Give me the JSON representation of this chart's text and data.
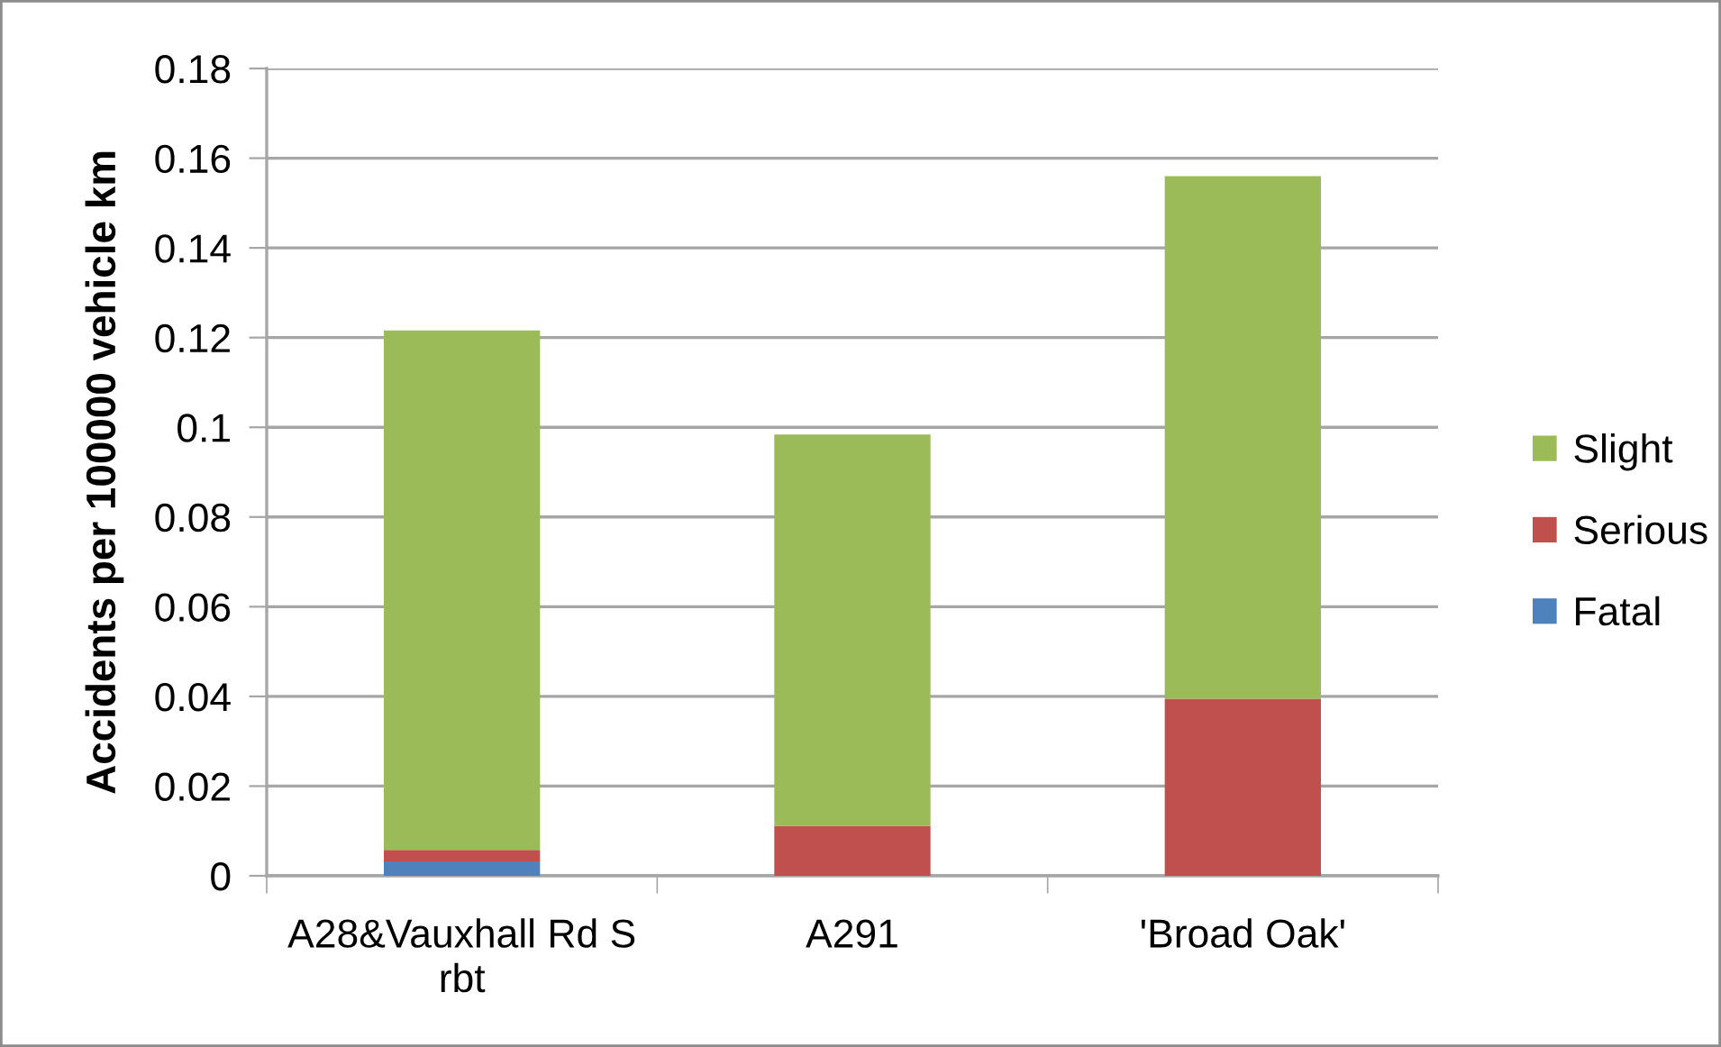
{
  "chart_data": {
    "type": "bar",
    "stacked": true,
    "ylabel": "Accidents per 100000 vehicle km",
    "categories": [
      "A28&Vauxhall Rd S\nrbt",
      "A291",
      "'Broad Oak'"
    ],
    "series": [
      {
        "name": "Fatal",
        "color": "#4f81bd",
        "values": [
          0.0032,
          null,
          null
        ]
      },
      {
        "name": "Serious",
        "color": "#c0504d",
        "values": [
          0.0026,
          0.0111,
          0.0395
        ]
      },
      {
        "name": "Slight",
        "color": "#9bbb59",
        "values": [
          0.1158,
          0.0873,
          0.1165
        ]
      }
    ],
    "ylim": [
      0,
      0.18
    ],
    "yticks": [
      0,
      0.02,
      0.04,
      0.06,
      0.08,
      0.1,
      0.12,
      0.14,
      0.16,
      0.18
    ],
    "grid": "y",
    "legend": "right"
  }
}
